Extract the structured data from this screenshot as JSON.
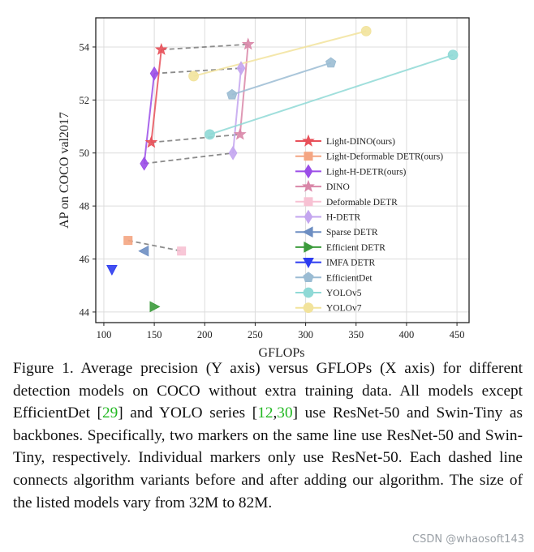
{
  "chart_data": {
    "type": "scatter",
    "xlabel": "GFLOPs",
    "ylabel": "AP on COCO val2017",
    "xlim": [
      92,
      462
    ],
    "ylim": [
      43.6,
      55.1
    ],
    "xticks": [
      100,
      150,
      200,
      250,
      300,
      350,
      400,
      450
    ],
    "yticks": [
      44,
      46,
      48,
      50,
      52,
      54
    ],
    "grid": true,
    "legend_position": "center-right",
    "series": [
      {
        "name": "Light-DINO(ours)",
        "marker": "star",
        "color": "#e8515a",
        "points": [
          {
            "x": 147,
            "y": 50.4
          },
          {
            "x": 157,
            "y": 53.9
          }
        ]
      },
      {
        "name": "Light-Deformable DETR(ours)",
        "marker": "square",
        "color": "#f4a582",
        "points": [
          {
            "x": 124,
            "y": 46.7
          }
        ]
      },
      {
        "name": "Light-H-DETR(ours)",
        "marker": "diamond",
        "color": "#9b4ee8",
        "points": [
          {
            "x": 140,
            "y": 49.6
          },
          {
            "x": 150,
            "y": 53.0
          }
        ]
      },
      {
        "name": "DINO",
        "marker": "star",
        "color": "#d987a8",
        "points": [
          {
            "x": 235,
            "y": 50.7
          },
          {
            "x": 243,
            "y": 54.1
          }
        ]
      },
      {
        "name": "Deformable DETR",
        "marker": "square",
        "color": "#f7c1d3",
        "points": [
          {
            "x": 177,
            "y": 46.3
          }
        ]
      },
      {
        "name": "H-DETR",
        "marker": "diamond",
        "color": "#c3a5ef",
        "points": [
          {
            "x": 228,
            "y": 50.0
          },
          {
            "x": 236,
            "y": 53.2
          }
        ]
      },
      {
        "name": "Sparse DETR",
        "marker": "triangle-left",
        "color": "#6d8ec2",
        "points": [
          {
            "x": 140,
            "y": 46.3
          }
        ]
      },
      {
        "name": "Efficient DETR",
        "marker": "triangle-right",
        "color": "#3c9b3c",
        "points": [
          {
            "x": 150,
            "y": 44.2
          }
        ]
      },
      {
        "name": "IMFA DETR",
        "marker": "triangle-down",
        "color": "#2d3cf0",
        "points": [
          {
            "x": 108,
            "y": 45.6
          }
        ]
      },
      {
        "name": "EfficientDet",
        "marker": "pentagon",
        "color": "#9bbcd3",
        "points": [
          {
            "x": 227,
            "y": 52.2
          },
          {
            "x": 325,
            "y": 53.4
          }
        ]
      },
      {
        "name": "YOLOv5",
        "marker": "circle",
        "color": "#8fd9d6",
        "points": [
          {
            "x": 205,
            "y": 50.7
          },
          {
            "x": 446,
            "y": 53.7
          }
        ]
      },
      {
        "name": "YOLOv7",
        "marker": "circle",
        "color": "#f2e39c",
        "points": [
          {
            "x": 189,
            "y": 52.9
          },
          {
            "x": 360,
            "y": 54.6
          }
        ]
      }
    ],
    "dashed_links": [
      {
        "from": [
          157,
          53.9
        ],
        "to": [
          243,
          54.1
        ]
      },
      {
        "from": [
          147,
          50.4
        ],
        "to": [
          235,
          50.7
        ]
      },
      {
        "from": [
          150,
          53.0
        ],
        "to": [
          236,
          53.2
        ]
      },
      {
        "from": [
          140,
          49.6
        ],
        "to": [
          228,
          50.0
        ]
      },
      {
        "from": [
          124,
          46.7
        ],
        "to": [
          177,
          46.3
        ]
      }
    ]
  },
  "caption": {
    "part1": "Figure 1. Average precision (Y axis) versus GFLOPs (X axis) for different detection models on COCO without extra training data. All models except EfficientDet [",
    "ref1": "29",
    "part2": "] and YOLO series [",
    "ref2": "12",
    "sep": ",",
    "ref3": "30",
    "part3": "] use ResNet-50 and Swin-Tiny as backbones. Specifically, two markers on the same line use ResNet-50 and Swin-Tiny, respectively. Individual markers only use ResNet-50. Each dashed line connects algorithm variants before and after adding our algorithm. The size of the listed models vary from 32M to 82M."
  },
  "watermark": "CSDN @whaosoft143"
}
